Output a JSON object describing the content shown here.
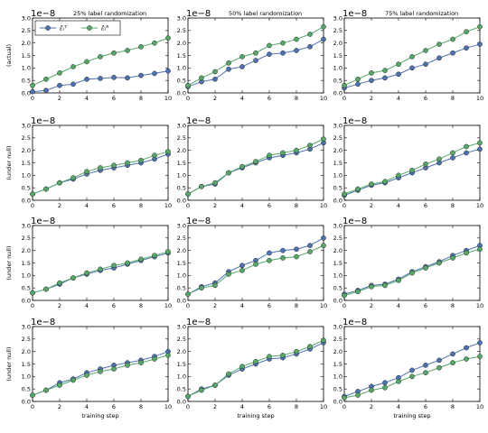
{
  "chart_data": {
    "type": "line",
    "exponent_label": "1e−8",
    "xlim": [
      0,
      10
    ],
    "ylim": [
      0.0,
      3.0
    ],
    "x_ticks": [
      "0",
      "2",
      "4",
      "6",
      "8",
      "10"
    ],
    "y_ticks": [
      "0.0",
      "0.5",
      "1.0",
      "1.5",
      "2.0",
      "2.5",
      "3.0"
    ],
    "x": [
      0,
      1,
      2,
      3,
      4,
      5,
      6,
      7,
      8,
      9,
      10
    ],
    "xlabel": "training step",
    "column_titles": [
      "25% label randomization",
      "50% label randomization",
      "75% label randomization"
    ],
    "row_ylabels": [
      "(actual)",
      "(under null)",
      "(under null)",
      "(under null)"
    ],
    "legend": {
      "placement": "top-left of first panel",
      "entries": [
        {
          "label": "ε̄ᵢᵀ",
          "color": "#4c72b0"
        },
        {
          "label": "ε̄ᵢᴿ",
          "color": "#55a868"
        }
      ]
    },
    "colors": {
      "series_1": "#4c72b0",
      "series_2": "#55a868"
    },
    "panels": [
      {
        "row": 0,
        "col": 0,
        "series": [
          {
            "values": [
              0.05,
              0.1,
              0.3,
              0.35,
              0.55,
              0.58,
              0.62,
              0.6,
              0.7,
              0.78,
              0.88
            ]
          },
          {
            "values": [
              0.3,
              0.55,
              0.8,
              1.05,
              1.25,
              1.45,
              1.6,
              1.7,
              1.85,
              2.0,
              2.2
            ]
          }
        ]
      },
      {
        "row": 0,
        "col": 1,
        "series": [
          {
            "values": [
              0.25,
              0.45,
              0.55,
              0.95,
              1.05,
              1.3,
              1.55,
              1.6,
              1.7,
              1.85,
              2.15
            ]
          },
          {
            "values": [
              0.3,
              0.6,
              0.85,
              1.2,
              1.45,
              1.6,
              1.9,
              2.0,
              2.15,
              2.35,
              2.65
            ]
          }
        ]
      },
      {
        "row": 0,
        "col": 2,
        "series": [
          {
            "values": [
              0.2,
              0.35,
              0.5,
              0.6,
              0.75,
              1.0,
              1.15,
              1.4,
              1.6,
              1.8,
              1.95
            ]
          },
          {
            "values": [
              0.3,
              0.55,
              0.8,
              0.9,
              1.15,
              1.45,
              1.7,
              1.95,
              2.15,
              2.45,
              2.65
            ]
          }
        ]
      },
      {
        "row": 1,
        "col": 0,
        "series": [
          {
            "values": [
              0.25,
              0.45,
              0.7,
              0.85,
              1.05,
              1.2,
              1.3,
              1.4,
              1.5,
              1.65,
              1.85
            ]
          },
          {
            "values": [
              0.25,
              0.45,
              0.7,
              0.9,
              1.15,
              1.3,
              1.4,
              1.5,
              1.6,
              1.8,
              1.95
            ]
          }
        ]
      },
      {
        "row": 1,
        "col": 1,
        "series": [
          {
            "values": [
              0.25,
              0.55,
              0.65,
              1.1,
              1.3,
              1.5,
              1.7,
              1.8,
              1.9,
              2.05,
              2.3
            ]
          },
          {
            "values": [
              0.25,
              0.55,
              0.7,
              1.1,
              1.35,
              1.55,
              1.8,
              1.9,
              2.0,
              2.2,
              2.45
            ]
          }
        ]
      },
      {
        "row": 1,
        "col": 2,
        "series": [
          {
            "values": [
              0.2,
              0.4,
              0.6,
              0.7,
              0.9,
              1.1,
              1.3,
              1.5,
              1.7,
              1.9,
              2.05
            ]
          },
          {
            "values": [
              0.25,
              0.45,
              0.65,
              0.75,
              1.0,
              1.2,
              1.45,
              1.65,
              1.9,
              2.15,
              2.3
            ]
          }
        ]
      },
      {
        "row": 2,
        "col": 0,
        "series": [
          {
            "values": [
              0.3,
              0.45,
              0.65,
              0.9,
              1.05,
              1.2,
              1.3,
              1.45,
              1.6,
              1.75,
              1.9
            ]
          },
          {
            "values": [
              0.3,
              0.45,
              0.7,
              0.9,
              1.1,
              1.25,
              1.4,
              1.5,
              1.65,
              1.8,
              1.95
            ]
          }
        ]
      },
      {
        "row": 2,
        "col": 1,
        "series": [
          {
            "values": [
              0.25,
              0.55,
              0.7,
              1.15,
              1.4,
              1.6,
              1.9,
              2.0,
              2.05,
              2.2,
              2.5
            ]
          },
          {
            "values": [
              0.25,
              0.5,
              0.6,
              1.05,
              1.2,
              1.45,
              1.6,
              1.7,
              1.75,
              1.95,
              2.2
            ]
          }
        ]
      },
      {
        "row": 2,
        "col": 2,
        "series": [
          {
            "values": [
              0.25,
              0.4,
              0.6,
              0.65,
              0.85,
              1.15,
              1.35,
              1.55,
              1.8,
              2.0,
              2.2
            ]
          },
          {
            "values": [
              0.2,
              0.35,
              0.55,
              0.6,
              0.8,
              1.1,
              1.3,
              1.5,
              1.7,
              1.9,
              2.05
            ]
          }
        ]
      },
      {
        "row": 3,
        "col": 0,
        "series": [
          {
            "values": [
              0.25,
              0.45,
              0.75,
              0.9,
              1.15,
              1.3,
              1.45,
              1.55,
              1.65,
              1.8,
              2.0
            ]
          },
          {
            "values": [
              0.25,
              0.45,
              0.65,
              0.85,
              1.05,
              1.2,
              1.3,
              1.45,
              1.55,
              1.7,
              1.85
            ]
          }
        ]
      },
      {
        "row": 3,
        "col": 1,
        "series": [
          {
            "values": [
              0.2,
              0.5,
              0.65,
              1.05,
              1.3,
              1.5,
              1.7,
              1.75,
              1.9,
              2.1,
              2.35
            ]
          },
          {
            "values": [
              0.2,
              0.45,
              0.65,
              1.1,
              1.4,
              1.6,
              1.8,
              1.85,
              2.0,
              2.2,
              2.45
            ]
          }
        ]
      },
      {
        "row": 3,
        "col": 2,
        "series": [
          {
            "values": [
              0.2,
              0.4,
              0.6,
              0.75,
              0.95,
              1.25,
              1.45,
              1.65,
              1.9,
              2.15,
              2.35
            ]
          },
          {
            "values": [
              0.15,
              0.25,
              0.45,
              0.55,
              0.8,
              1.0,
              1.15,
              1.35,
              1.55,
              1.7,
              1.8
            ]
          }
        ]
      }
    ]
  }
}
